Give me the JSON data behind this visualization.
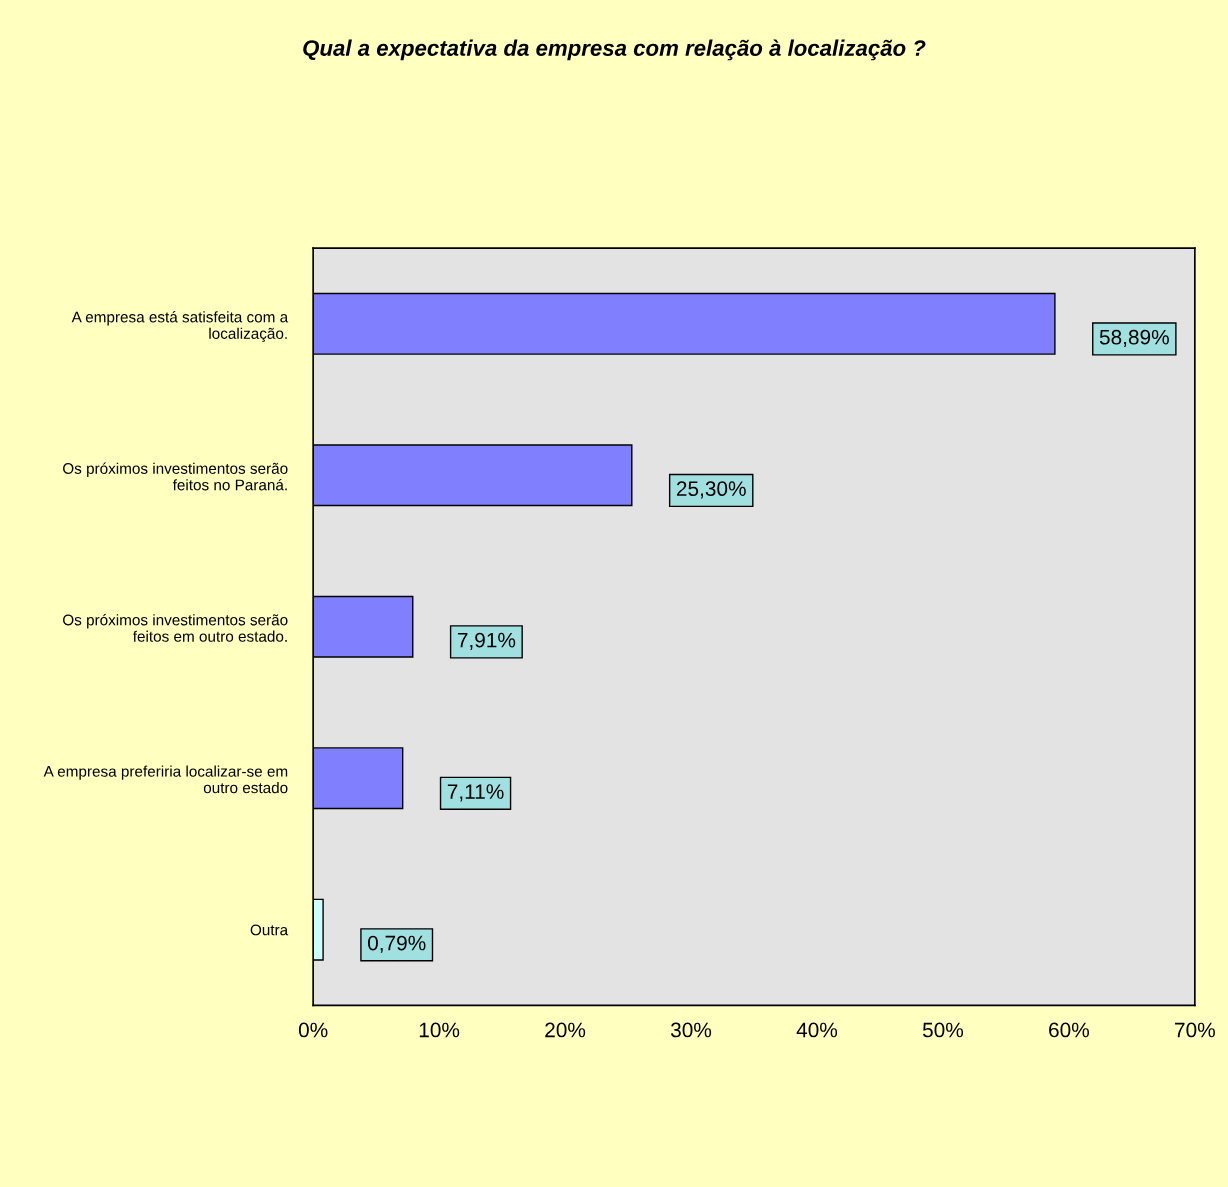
{
  "chart_data": {
    "type": "bar",
    "orientation": "horizontal",
    "title": "Qual a expectativa da empresa com relação à localização ?",
    "categories": [
      "A empresa está satisfeita com a\nlocalização.",
      "Os próximos investimentos serão\nfeitos no Paraná.",
      "Os próximos investimentos serão\nfeitos em outro estado.",
      "A empresa preferiria localizar-se em\noutro estado",
      "Outra"
    ],
    "values": [
      58.89,
      25.3,
      7.91,
      7.11,
      0.79
    ],
    "colors": [
      "#8080ff",
      "#8080ff",
      "#8080ff",
      "#8080ff",
      "#ccffff"
    ],
    "value_labels": [
      "58,89%",
      "25,30%",
      "7,91%",
      "7,11%",
      "0,79%"
    ],
    "xlim": [
      0,
      70
    ],
    "xticks": [
      {
        "value": 0,
        "label": "0%"
      },
      {
        "value": 10,
        "label": "10%"
      },
      {
        "value": 20,
        "label": "20%"
      },
      {
        "value": 30,
        "label": "30%"
      },
      {
        "value": 40,
        "label": "40%"
      },
      {
        "value": 50,
        "label": "50%"
      },
      {
        "value": 60,
        "label": "60%"
      },
      {
        "value": 70,
        "label": "70%"
      }
    ],
    "grid": false,
    "legend": false
  }
}
